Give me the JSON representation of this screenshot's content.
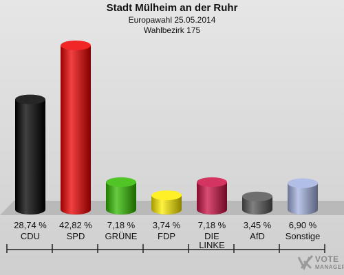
{
  "header": {
    "title": "Stadt Mülheim an der Ruhr",
    "subtitle": "Europawahl 25.05.2014",
    "district": "Wahlbezirk 175"
  },
  "chart_data": {
    "type": "bar",
    "title": "Stadt Mülheim an der Ruhr",
    "subtitle": "Europawahl 25.05.2014 · Wahlbezirk 175",
    "categories": [
      "CDU",
      "SPD",
      "GRÜNE",
      "FDP",
      "DIE LINKE",
      "AfD",
      "Sonstige"
    ],
    "category_labels": [
      [
        "CDU"
      ],
      [
        "SPD"
      ],
      [
        "GRÜNE"
      ],
      [
        "FDP"
      ],
      [
        "DIE",
        "LINKE"
      ],
      [
        "AfD"
      ],
      [
        "Sonstige"
      ]
    ],
    "values": [
      28.74,
      42.82,
      7.18,
      3.74,
      7.18,
      3.45,
      6.9
    ],
    "value_labels": [
      "28,74 %",
      "42,82 %",
      "7,18 %",
      "3,74 %",
      "7,18 %",
      "3,45 %",
      "6,90 %"
    ],
    "colors": [
      "#000000",
      "#ee0000",
      "#33bb00",
      "#ffee00",
      "#cc1144",
      "#555555",
      "#a3b3e0"
    ],
    "unit": "%",
    "ylim": [
      0,
      45
    ],
    "grid": false,
    "legend": "none",
    "style": "3d-cylinders"
  },
  "watermark": {
    "line1": "VOTE",
    "line2": "MANAGER"
  }
}
